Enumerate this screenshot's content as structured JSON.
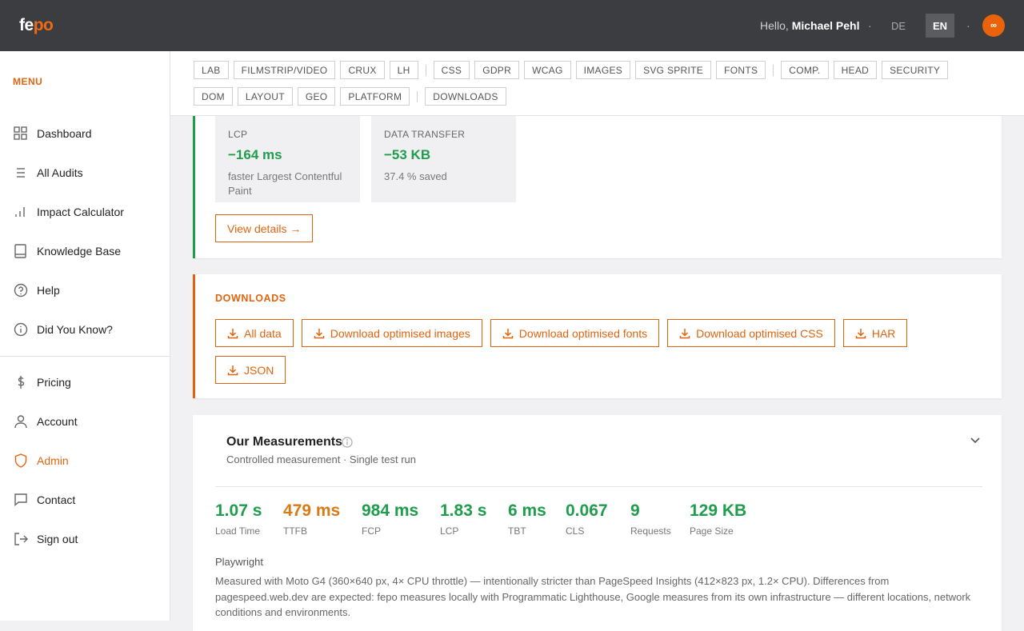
{
  "header": {
    "logo_a": "fe",
    "logo_b": "po",
    "greeting": "Hello,",
    "user": "Michael Pehl",
    "separator": "·",
    "languages": [
      "DE",
      "EN"
    ],
    "avatar": "∞"
  },
  "sidebar": {
    "title": "MENU",
    "items": [
      "Dashboard",
      "All Audits",
      "Impact Calculator",
      "Knowledge Base",
      "Help",
      "Did You Know?"
    ],
    "items2": [
      "Pricing",
      "Account",
      "Admin",
      "Contact",
      "Sign out"
    ]
  },
  "tabs": [
    [
      "LAB",
      "FILMSTRIP/VIDEO",
      "CRUX",
      "LH"
    ],
    [
      "CSS",
      "GDPR",
      "WCAG",
      "IMAGES",
      "SVG SPRITE",
      "FONTS"
    ],
    [
      "COMP.",
      "HEAD",
      "SECURITY",
      "DOM",
      "LAYOUT",
      "GEO",
      "PLATFORM"
    ],
    [
      "DOWNLOADS"
    ]
  ],
  "impact": {
    "boxes": [
      {
        "label": "LCP",
        "value": "−164 ms",
        "desc": "faster Largest Contentful Paint"
      },
      {
        "label": "DATA TRANSFER",
        "value": "−53 KB",
        "desc": "37.4 % saved"
      }
    ],
    "button": "View details →"
  },
  "downloads": {
    "title": "DOWNLOADS",
    "buttons": [
      "All data",
      "Download optimised images",
      "Download optimised fonts",
      "Download optimised CSS",
      "HAR",
      "JSON"
    ]
  },
  "measurements": {
    "title": "Our Measurements",
    "subtitle": "Controlled measurement · Single test run",
    "metrics": [
      {
        "value": "1.07 s",
        "label": "Load Time",
        "color": "#1f9d4c"
      },
      {
        "value": "479 ms",
        "label": "TTFB",
        "color": "#d97a14"
      },
      {
        "value": "984 ms",
        "label": "FCP",
        "color": "#1f9d4c"
      },
      {
        "value": "1.83 s",
        "label": "LCP",
        "color": "#1f9d4c"
      },
      {
        "value": "6 ms",
        "label": "TBT",
        "color": "#1f9d4c"
      },
      {
        "value": "0.067",
        "label": "CLS",
        "color": "#1f9d4c"
      },
      {
        "value": "9",
        "label": "Requests",
        "color": "#1f9d4c"
      },
      {
        "value": "129 KB",
        "label": "Page Size",
        "color": "#1f9d4c"
      }
    ],
    "runner": "Playwright",
    "note": "Measured with Moto G4 (360×640 px, 4× CPU throttle) — intentionally stricter than PageSpeed Insights (412×823 px, 1.2× CPU). Differences from pagespeed.web.dev are expected: fepo measures locally with Programmatic Lighthouse, Google measures from its own infrastructure — different locations, network conditions and environments."
  }
}
